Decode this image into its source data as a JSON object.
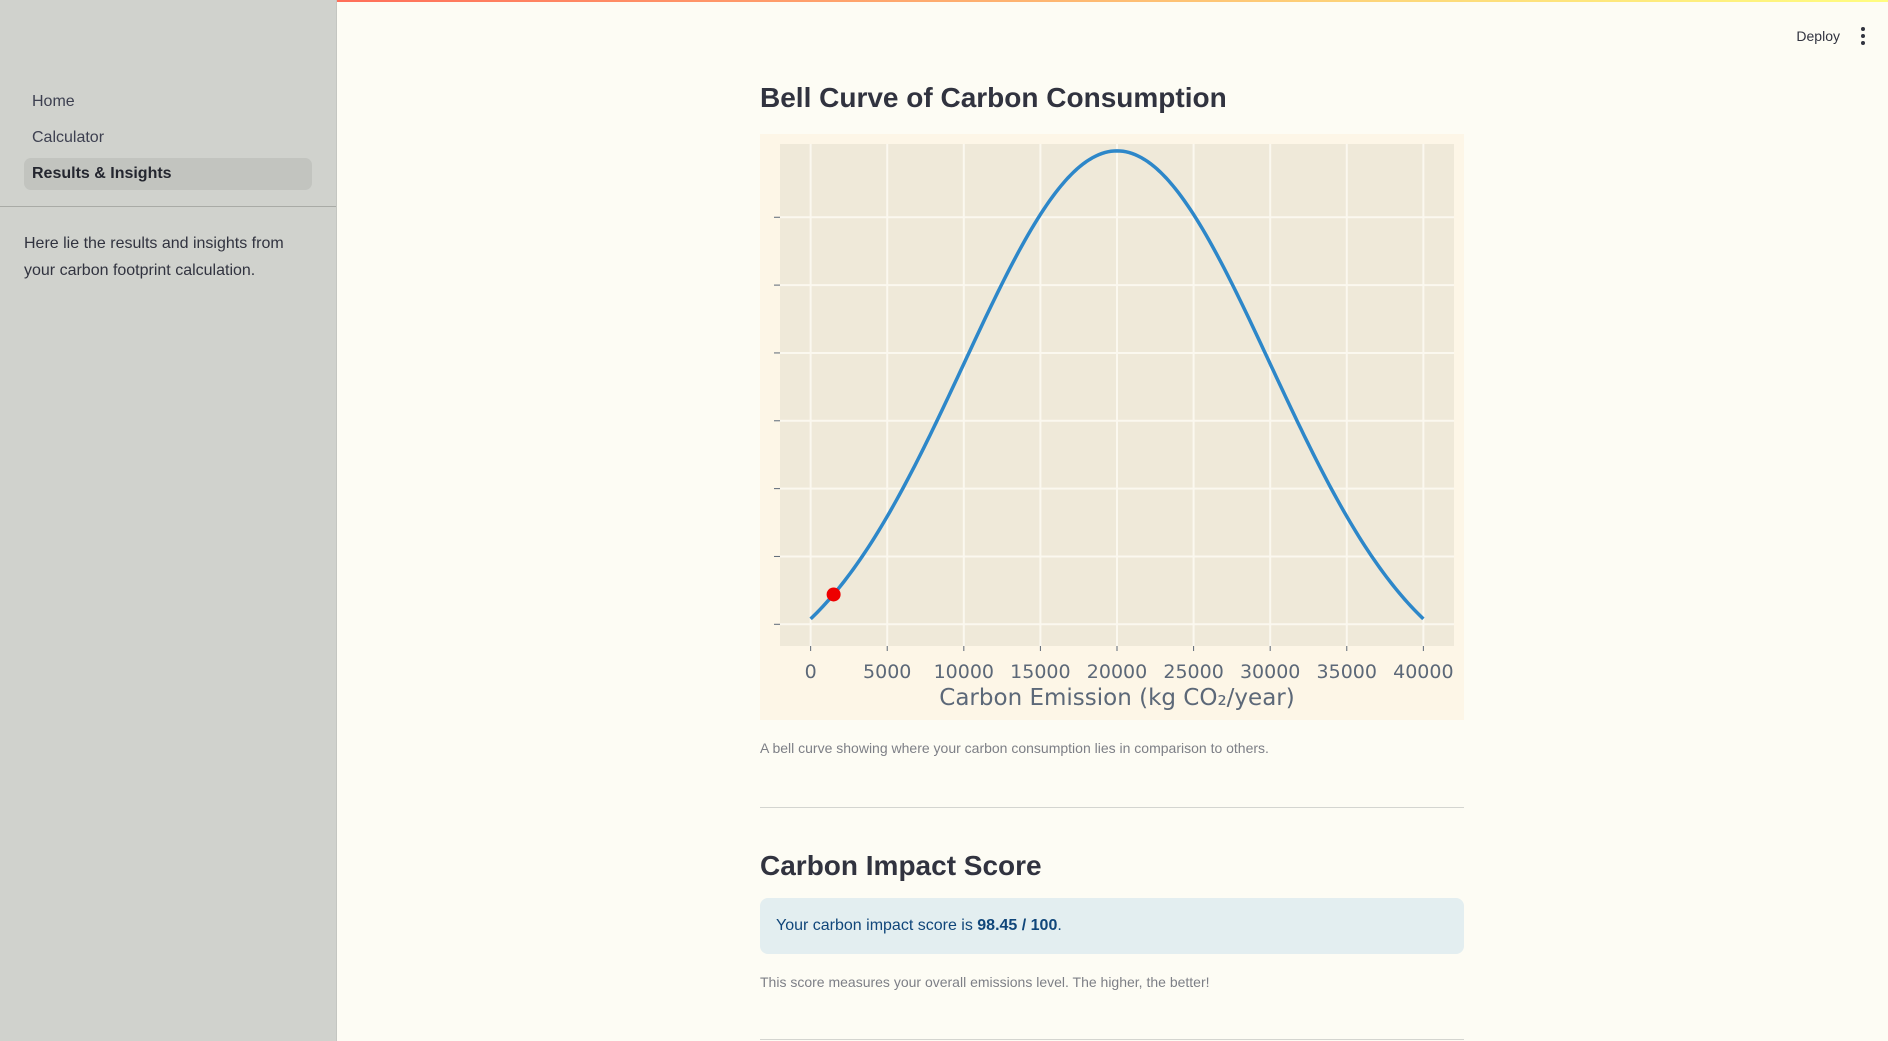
{
  "sidebar": {
    "items": [
      {
        "label": "Home",
        "active": false
      },
      {
        "label": "Calculator",
        "active": false
      },
      {
        "label": "Results & Insights",
        "active": true
      }
    ],
    "description": "Here lie the results and insights from your carbon footprint calculation."
  },
  "header": {
    "deploy_label": "Deploy",
    "menu_icon": "kebab-menu-icon"
  },
  "main": {
    "chart_title": "Bell Curve of Carbon Consumption",
    "chart_caption": "A bell curve showing where your carbon consumption lies in comparison to others.",
    "score_title": "Carbon Impact Score",
    "score_prefix": "Your carbon impact score is ",
    "score_value": "98.45 / 100",
    "score_suffix": ".",
    "score_caption": "This score measures your overall emissions level. The higher, the better!"
  },
  "colors": {
    "curve": "#2d87c9",
    "marker": "#ee0000",
    "plot_bg": "#efe9d9",
    "paper_bg": "#fdf6e7",
    "grid": "#fbf8ef"
  },
  "chart_data": {
    "type": "line",
    "xlabel": "Carbon Emission (kg CO₂/year)",
    "ylabel": "",
    "xlim": [
      -2000,
      42000
    ],
    "ylim": [
      3.4e-06,
      4.04e-05
    ],
    "x_ticks": [
      0,
      5000,
      10000,
      15000,
      20000,
      25000,
      30000,
      35000,
      40000
    ],
    "y_ticks": [
      5e-06,
      1e-05,
      1.5e-05,
      2e-05,
      2.5e-05,
      3e-05,
      3.5e-05
    ],
    "y_tick_labels_visible": false,
    "grid": true,
    "curve": {
      "mean": 20000,
      "std": 10000,
      "x_start": 0,
      "x_end": 40000
    },
    "user_point": {
      "x": 1500,
      "y": 7.2e-06
    }
  }
}
